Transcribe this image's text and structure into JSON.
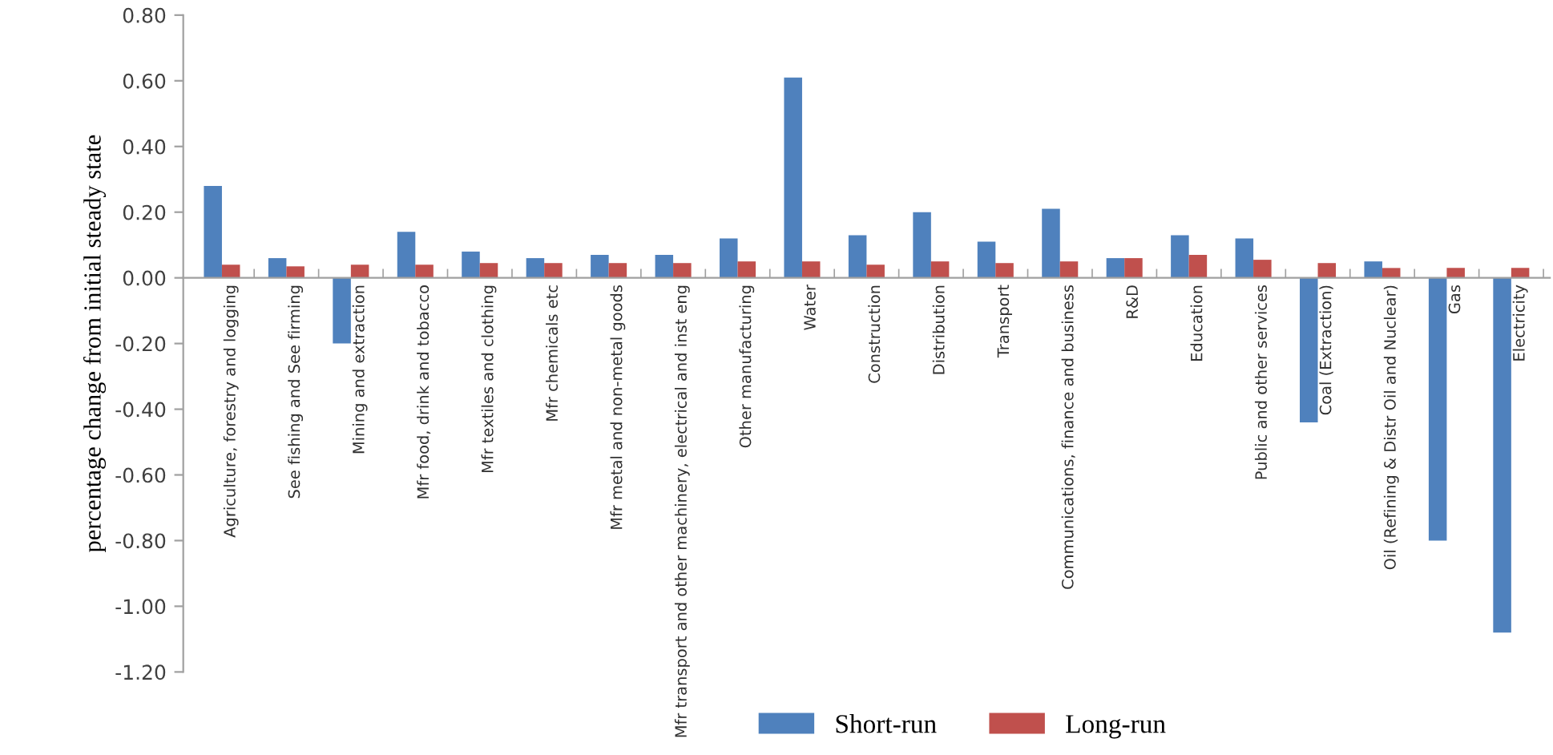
{
  "chart_data": {
    "type": "bar",
    "ylabel": "percentage change from initial steady state",
    "categories": [
      "Agriculture, forestry and logging",
      "See fishing and See firming",
      "Mining and extraction",
      "Mfr food, drink and tobacco",
      "Mfr textiles and clothing",
      "Mfr chemicals etc",
      "Mfr metal and non-metal goods",
      "Mfr transport and other machinery, electrical and inst eng",
      "Other manufacturing",
      "Water",
      "Construction",
      "Distribution",
      "Transport",
      "Communications, finance and business",
      "R&D",
      "Education",
      "Public and other services",
      "Coal (Extraction)",
      "Oil (Refining & Distr Oil and Nuclear)",
      "Gas",
      "Electricity"
    ],
    "series": [
      {
        "name": "Short-run",
        "color": "#4f81bd",
        "values": [
          0.28,
          0.06,
          -0.2,
          0.14,
          0.08,
          0.06,
          0.07,
          0.07,
          0.12,
          0.61,
          0.13,
          0.2,
          0.11,
          0.21,
          0.06,
          0.13,
          0.12,
          -0.44,
          0.05,
          -0.8,
          -1.08
        ]
      },
      {
        "name": "Long-run",
        "color": "#c0504d",
        "values": [
          0.04,
          0.035,
          0.04,
          0.04,
          0.045,
          0.045,
          0.045,
          0.045,
          0.05,
          0.05,
          0.04,
          0.05,
          0.045,
          0.05,
          0.06,
          0.07,
          0.055,
          0.045,
          0.03,
          0.03,
          0.03
        ]
      }
    ],
    "ylim": [
      -1.2,
      0.8
    ],
    "yticks": [
      {
        "value": -1.2,
        "label": "-1.20"
      },
      {
        "value": -1.0,
        "label": "-1.00"
      },
      {
        "value": -0.8,
        "label": "-0.80"
      },
      {
        "value": -0.6,
        "label": "-0.60"
      },
      {
        "value": -0.4,
        "label": "-0.40"
      },
      {
        "value": -0.2,
        "label": "-0.20"
      },
      {
        "value": 0,
        "label": "0.00"
      },
      {
        "value": 0.2,
        "label": "0.20"
      },
      {
        "value": 0.4,
        "label": "0.40"
      },
      {
        "value": 0.6,
        "label": "0.60"
      },
      {
        "value": 0.8,
        "label": "0.80"
      }
    ],
    "grid": false,
    "legend": "bottom"
  }
}
